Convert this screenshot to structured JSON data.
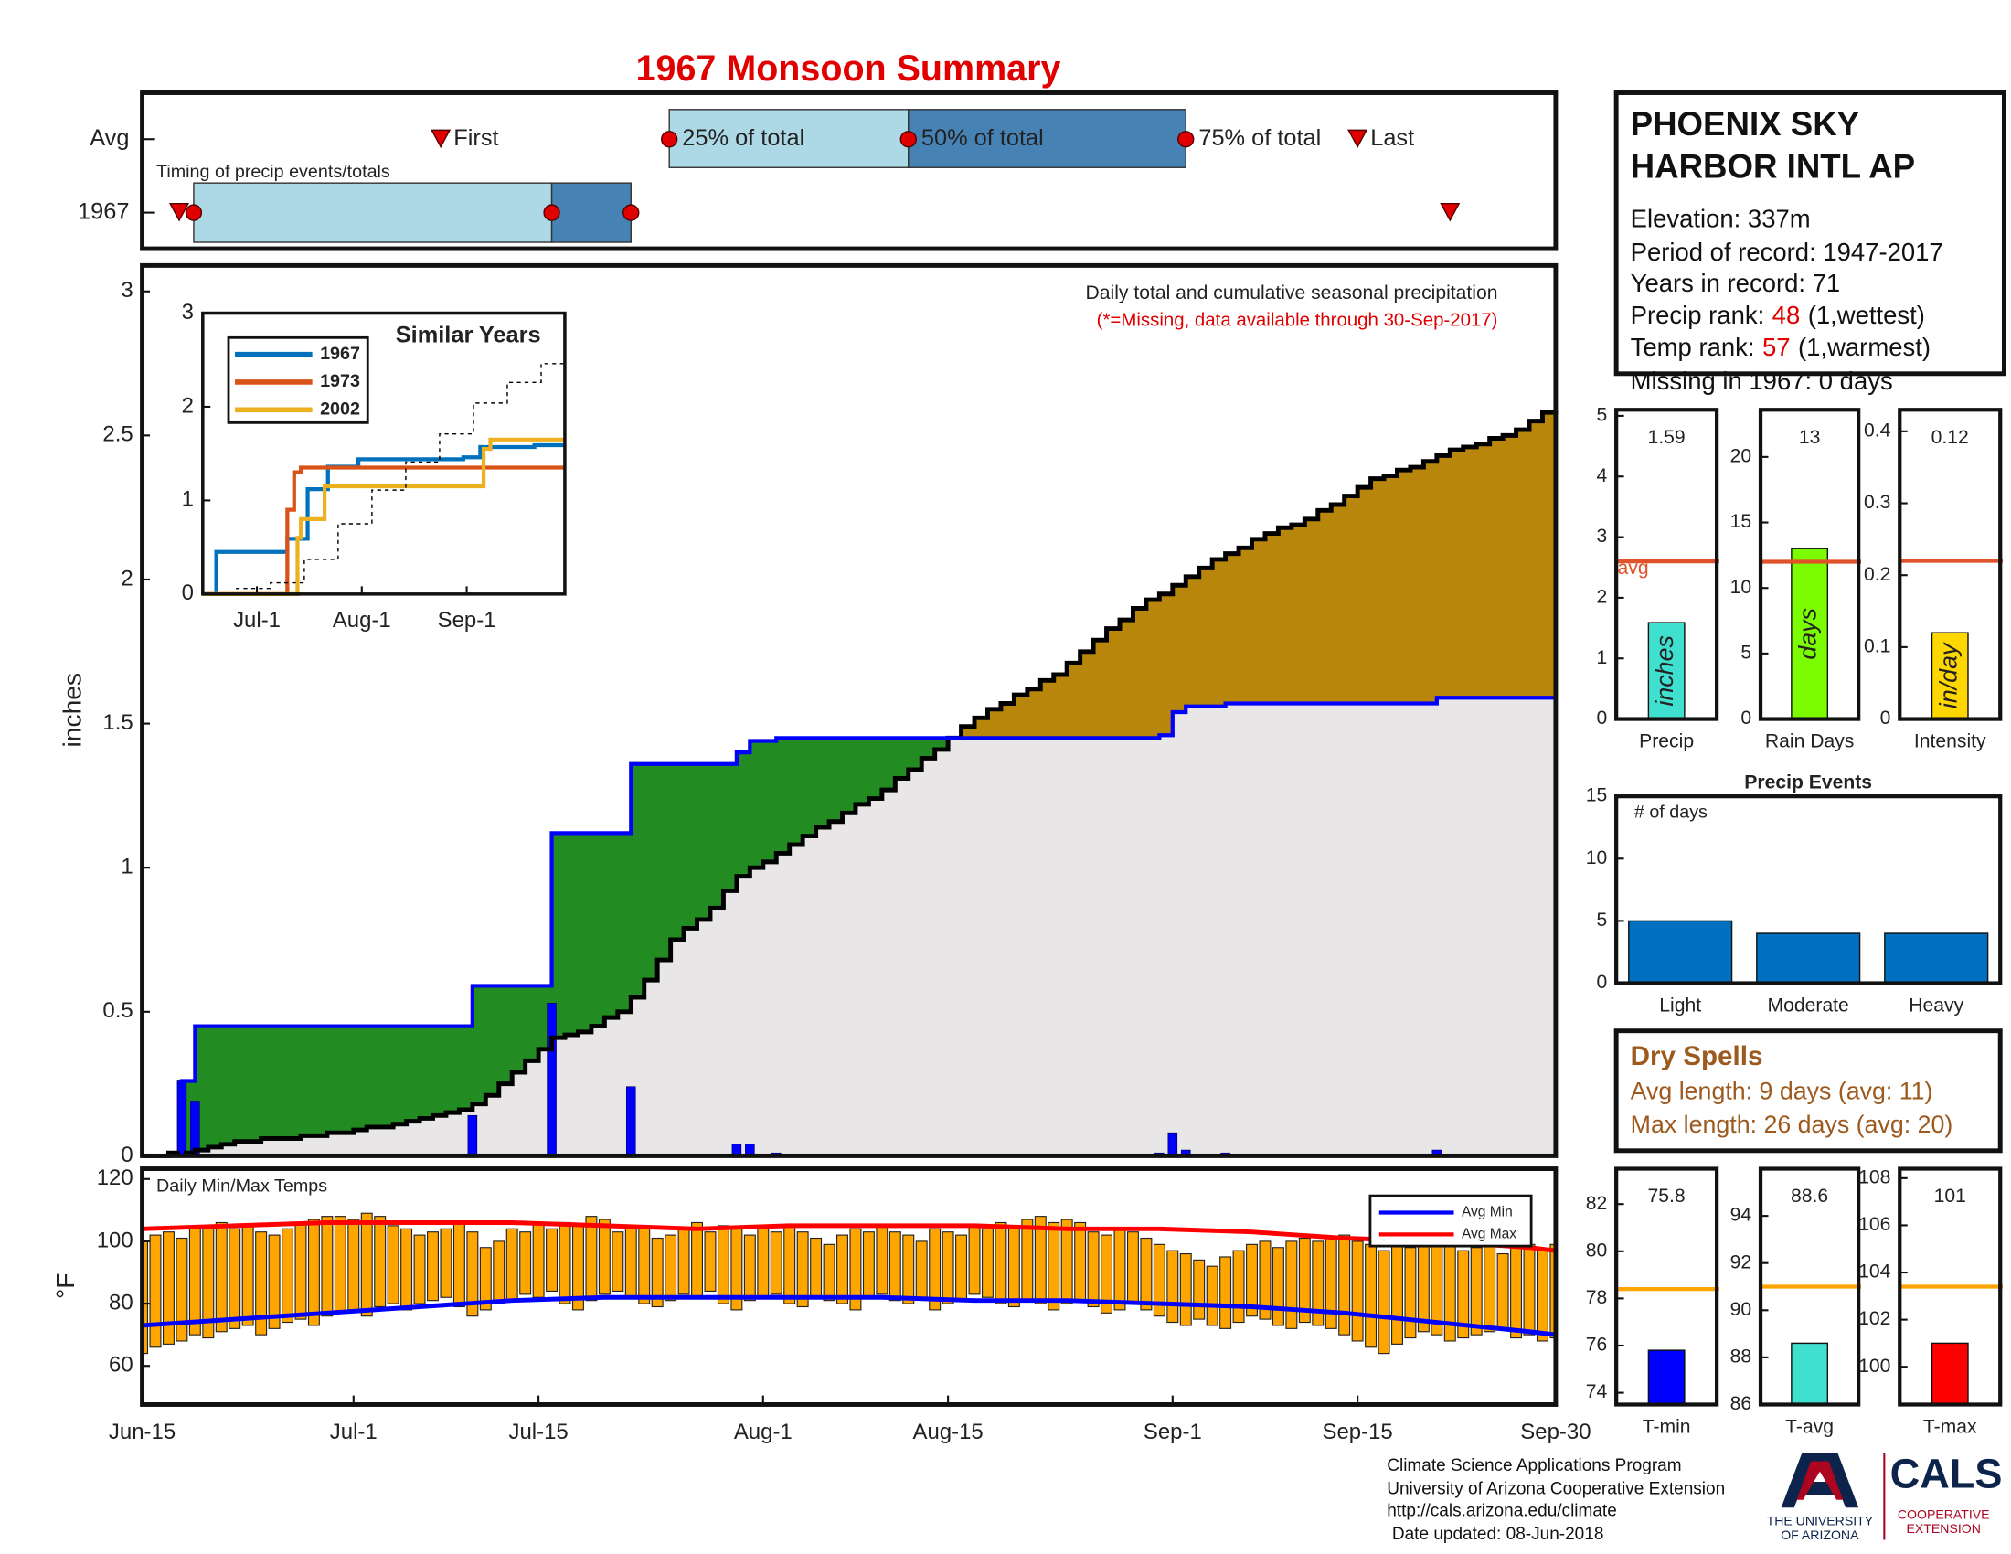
{
  "chart_data": [
    {
      "type": "timing",
      "title": "1967 Monsoon Summary",
      "note": "Timing of precip events/totals",
      "xlim": [
        0,
        107
      ],
      "markers": [
        "First",
        "25% of total",
        "50% of total",
        "75% of total",
        "Last"
      ],
      "colors": {
        "marker": "#e00000",
        "low": "#add8e6",
        "high": "#4682b4"
      },
      "series": [
        {
          "name": "Avg",
          "values": [
            22.6,
            39.9,
            58,
            79,
            92
          ]
        },
        {
          "name": "1967",
          "values": [
            2.8,
            3.9,
            31,
            37,
            99
          ]
        }
      ]
    },
    {
      "type": "cumulative",
      "ylabel": "inches",
      "annotations": [
        "Daily total and cumulative seasonal precipitation",
        "(*=Missing, data available through 30-Sep-2017)"
      ],
      "xlim": [
        0,
        107
      ],
      "ylim": [
        0,
        3.09
      ],
      "yticks": [
        0,
        0.5,
        1,
        1.5,
        2,
        2.5,
        3
      ],
      "overlap_color": "#e8e6e6",
      "series": [
        {
          "color": "#000000",
          "fill": "#b8860b",
          "x": [
            0,
            1,
            2,
            3,
            4,
            5,
            6,
            7,
            8,
            9,
            10,
            11,
            12,
            13,
            14,
            15,
            16,
            17,
            18,
            19,
            20,
            21,
            22,
            23,
            24,
            25,
            26,
            27,
            28,
            29,
            30,
            31,
            32,
            33,
            34,
            35,
            36,
            37,
            38,
            39,
            40,
            41,
            42,
            43,
            44,
            45,
            46,
            47,
            48,
            49,
            50,
            51,
            52,
            53,
            54,
            55,
            56,
            57,
            58,
            59,
            60,
            61,
            62,
            63,
            64,
            65,
            66,
            67,
            68,
            69,
            70,
            71,
            72,
            73,
            74,
            75,
            76,
            77,
            78,
            79,
            80,
            81,
            82,
            83,
            84,
            85,
            86,
            87,
            88,
            89,
            90,
            91,
            92,
            93,
            94,
            95,
            96,
            97,
            98,
            99,
            100,
            101,
            102,
            103,
            104,
            105,
            106,
            107
          ],
          "values": [
            0,
            0,
            0.01,
            0.01,
            0.02,
            0.03,
            0.04,
            0.05,
            0.05,
            0.06,
            0.06,
            0.06,
            0.07,
            0.07,
            0.08,
            0.08,
            0.09,
            0.1,
            0.1,
            0.11,
            0.12,
            0.13,
            0.14,
            0.15,
            0.16,
            0.18,
            0.21,
            0.25,
            0.29,
            0.33,
            0.37,
            0.41,
            0.42,
            0.43,
            0.45,
            0.48,
            0.5,
            0.55,
            0.61,
            0.68,
            0.75,
            0.79,
            0.82,
            0.86,
            0.92,
            0.97,
            1,
            1.02,
            1.05,
            1.08,
            1.11,
            1.14,
            1.16,
            1.19,
            1.22,
            1.24,
            1.27,
            1.31,
            1.34,
            1.38,
            1.41,
            1.45,
            1.49,
            1.52,
            1.55,
            1.57,
            1.6,
            1.62,
            1.65,
            1.67,
            1.71,
            1.75,
            1.79,
            1.83,
            1.86,
            1.9,
            1.93,
            1.95,
            1.98,
            2.01,
            2.04,
            2.07,
            2.09,
            2.11,
            2.14,
            2.16,
            2.18,
            2.19,
            2.21,
            2.24,
            2.26,
            2.29,
            2.32,
            2.35,
            2.36,
            2.38,
            2.39,
            2.41,
            2.43,
            2.45,
            2.46,
            2.47,
            2.49,
            2.5,
            2.52,
            2.55,
            2.58,
            2.59
          ]
        },
        {
          "color": "#0000ff",
          "fill": "#228b22",
          "x": [
            0,
            3,
            4,
            25,
            31,
            37,
            45,
            46,
            48,
            77,
            78,
            79,
            82,
            98,
            107
          ],
          "values": [
            0,
            0.26,
            0.45,
            0.59,
            1.12,
            1.36,
            1.4,
            1.44,
            1.45,
            1.46,
            1.54,
            1.56,
            1.57,
            1.59,
            1.59
          ]
        }
      ],
      "daily": {
        "color": "#0000ff",
        "x": [
          3,
          4,
          25,
          31,
          37,
          45,
          46,
          48,
          77,
          78,
          79,
          82,
          98
        ],
        "values": [
          0.26,
          0.19,
          0.14,
          0.53,
          0.24,
          0.04,
          0.04,
          0.01,
          0.01,
          0.08,
          0.02,
          0.01,
          0.02
        ]
      }
    },
    {
      "type": "inset",
      "title": "Similar Years",
      "xlim": [
        0,
        107
      ],
      "ylim": [
        0,
        3
      ],
      "xticks": [
        {
          "value": 16,
          "label": "Jul-1"
        },
        {
          "value": 47,
          "label": "Aug-1"
        },
        {
          "value": 78,
          "label": "Sep-1"
        }
      ],
      "yticks": [
        0,
        1,
        2,
        3
      ],
      "series": [
        {
          "name": "1967",
          "color": "#0072bd",
          "x": [
            0,
            4,
            25,
            31,
            37,
            46,
            77,
            82,
            98,
            107
          ],
          "values": [
            0,
            0.45,
            0.59,
            1.12,
            1.36,
            1.44,
            1.46,
            1.57,
            1.59,
            1.59
          ]
        },
        {
          "name": "1973",
          "color": "#d95319",
          "x": [
            0,
            25,
            27,
            29,
            107
          ],
          "values": [
            0,
            0.9,
            1.3,
            1.35,
            1.35
          ]
        },
        {
          "name": "2002",
          "color": "#edb120",
          "x": [
            0,
            28,
            29,
            36,
            82,
            83,
            85,
            107
          ],
          "values": [
            0,
            0.6,
            0.8,
            1.15,
            1.15,
            1.55,
            1.65,
            1.65
          ]
        },
        {
          "color": "#000000",
          "dash": true,
          "x": [
            0,
            10,
            20,
            30,
            40,
            50,
            60,
            70,
            80,
            90,
            100,
            107
          ],
          "values": [
            0,
            0.06,
            0.12,
            0.37,
            0.75,
            1.11,
            1.41,
            1.71,
            2.04,
            2.26,
            2.46,
            2.59
          ]
        }
      ]
    },
    {
      "type": "range-bar",
      "title": "Daily Min/Max Temps",
      "ylabel": "°F",
      "xlim": [
        0,
        107
      ],
      "ylim": [
        47.6,
        123.3
      ],
      "yticks": [
        60,
        80,
        100,
        120
      ],
      "xticks": [
        {
          "value": 0,
          "label": "Jun-15"
        },
        {
          "value": 16,
          "label": "Jul-1"
        },
        {
          "value": 30,
          "label": "Jul-15"
        },
        {
          "value": 47,
          "label": "Aug-1"
        },
        {
          "value": 61,
          "label": "Aug-15"
        },
        {
          "value": 78,
          "label": "Sep-1"
        },
        {
          "value": 92,
          "label": "Sep-15"
        },
        {
          "value": 107,
          "label": "Sep-30"
        }
      ],
      "bar_color": "#ffa500",
      "x": [
        0,
        1,
        2,
        3,
        4,
        5,
        6,
        7,
        8,
        9,
        10,
        11,
        12,
        13,
        14,
        15,
        16,
        17,
        18,
        19,
        20,
        21,
        22,
        23,
        24,
        25,
        26,
        27,
        28,
        29,
        30,
        31,
        32,
        33,
        34,
        35,
        36,
        37,
        38,
        39,
        40,
        41,
        42,
        43,
        44,
        45,
        46,
        47,
        48,
        49,
        50,
        51,
        52,
        53,
        54,
        55,
        56,
        57,
        58,
        59,
        60,
        61,
        62,
        63,
        64,
        65,
        66,
        67,
        68,
        69,
        70,
        71,
        72,
        73,
        74,
        75,
        76,
        77,
        78,
        79,
        80,
        81,
        82,
        83,
        84,
        85,
        86,
        87,
        88,
        89,
        90,
        91,
        92,
        93,
        94,
        95,
        96,
        97,
        98,
        99,
        100,
        101,
        102,
        103,
        104,
        105,
        106,
        107
      ],
      "low": [
        64,
        66,
        67,
        68,
        70,
        69,
        71,
        72,
        73,
        70,
        72,
        74,
        75,
        73,
        76,
        77,
        78,
        76,
        79,
        80,
        78,
        80,
        81,
        82,
        79,
        76,
        78,
        80,
        81,
        83,
        82,
        84,
        80,
        78,
        81,
        83,
        84,
        82,
        80,
        79,
        81,
        83,
        82,
        84,
        80,
        78,
        81,
        82,
        83,
        80,
        79,
        82,
        81,
        80,
        78,
        82,
        83,
        81,
        80,
        82,
        78,
        80,
        81,
        83,
        82,
        80,
        79,
        81,
        80,
        78,
        80,
        81,
        79,
        77,
        78,
        80,
        78,
        76,
        74,
        73,
        75,
        73,
        72,
        74,
        76,
        75,
        73,
        72,
        74,
        73,
        72,
        70,
        68,
        66,
        64,
        67,
        69,
        71,
        70,
        68,
        69,
        70,
        71,
        72,
        69,
        70,
        68,
        69
      ],
      "high": [
        100,
        102,
        103,
        101,
        104,
        105,
        106,
        104,
        105,
        103,
        102,
        104,
        106,
        107,
        108,
        108,
        107,
        109,
        108,
        105,
        104,
        102,
        103,
        104,
        106,
        103,
        98,
        100,
        104,
        103,
        106,
        104,
        106,
        105,
        108,
        107,
        103,
        104,
        105,
        101,
        102,
        104,
        106,
        103,
        105,
        104,
        102,
        104,
        103,
        105,
        103,
        101,
        99,
        102,
        104,
        103,
        105,
        103,
        102,
        100,
        104,
        103,
        102,
        105,
        104,
        106,
        104,
        107,
        108,
        106,
        107,
        106,
        103,
        102,
        104,
        103,
        101,
        99,
        97,
        96,
        94,
        92,
        95,
        97,
        99,
        100,
        98,
        100,
        101,
        100,
        101,
        102,
        100,
        99,
        97,
        100,
        98,
        101,
        100,
        99,
        97,
        98,
        99,
        96,
        98,
        99,
        97,
        99
      ],
      "series": [
        {
          "name": "Avg Min",
          "color": "#0000ff",
          "x": [
            0,
            7,
            14,
            21,
            28,
            35,
            42,
            49,
            56,
            63,
            70,
            77,
            84,
            91,
            98,
            105,
            107
          ],
          "values": [
            73,
            75,
            77,
            79,
            81,
            82,
            82,
            82,
            82,
            81,
            81,
            80,
            79,
            77,
            74,
            71,
            70
          ]
        },
        {
          "name": "Avg Max",
          "color": "#ff0000",
          "x": [
            0,
            7,
            14,
            21,
            28,
            35,
            42,
            49,
            56,
            63,
            70,
            77,
            84,
            91,
            98,
            105,
            107
          ],
          "values": [
            104,
            105,
            106,
            106,
            106,
            105,
            104,
            105,
            105,
            105,
            104,
            104,
            103,
            101,
            100,
            98,
            97
          ]
        }
      ]
    },
    {
      "type": "single-bar",
      "xlabel": "Precip",
      "bar_label": "inches",
      "avg_label": "avg",
      "value": 1.59,
      "avg": 2.6,
      "color": "#40e0d0",
      "avg_color": "#e0522a",
      "ylim": [
        0,
        5.1
      ],
      "yticks": [
        0,
        1,
        2,
        3,
        4,
        5
      ]
    },
    {
      "type": "single-bar",
      "xlabel": "Rain Days",
      "bar_label": "days",
      "value": 13,
      "avg": 12,
      "color": "#7cfc00",
      "avg_color": "#e0522a",
      "ylim": [
        0,
        23.6
      ],
      "yticks": [
        0,
        5,
        10,
        15,
        20
      ]
    },
    {
      "type": "single-bar",
      "xlabel": "Intensity",
      "bar_label": "in/day",
      "value": 0.12,
      "avg": 0.22,
      "color": "#ffd700",
      "avg_color": "#e0522a",
      "ylim": [
        0,
        0.43
      ],
      "yticks": [
        0,
        0.1,
        0.2,
        0.3,
        0.4
      ]
    },
    {
      "type": "bar",
      "title": "Precip Events",
      "annotation": "# of days",
      "categories": [
        "Light",
        "Moderate",
        "Heavy"
      ],
      "values": [
        5,
        4,
        4
      ],
      "color": "#0070c0",
      "ylim": [
        0,
        15
      ],
      "yticks": [
        0,
        5,
        10,
        15
      ]
    },
    {
      "type": "single-bar",
      "xlabel": "T-min",
      "value": 75.8,
      "avg": 78.4,
      "color": "#0000ff",
      "avg_color": "#ffa500",
      "ylim": [
        73.5,
        83.5
      ],
      "yticks": [
        74,
        76,
        78,
        80,
        82
      ]
    },
    {
      "type": "single-bar",
      "xlabel": "T-avg",
      "value": 88.6,
      "avg": 91,
      "color": "#40e0d0",
      "avg_color": "#ffa500",
      "ylim": [
        86,
        96
      ],
      "yticks": [
        86,
        88,
        90,
        92,
        94
      ]
    },
    {
      "type": "single-bar",
      "xlabel": "T-max",
      "value": 101,
      "avg": 103.4,
      "color": "#ff0000",
      "avg_color": "#ffa500",
      "ylim": [
        98.4,
        108.4
      ],
      "yticks": [
        100,
        102,
        104,
        106,
        108
      ]
    }
  ],
  "station": {
    "title": [
      "PHOENIX SKY",
      "HARBOR INTL AP"
    ],
    "lines": [
      "Elevation: 337m",
      "Period of record: 1947-2017",
      "Years in record: 71"
    ],
    "precip_rank": [
      "Precip rank:",
      "48",
      "(1,wettest)"
    ],
    "temp_rank": [
      "Temp rank:",
      "57",
      "(1,warmest)"
    ],
    "missing": "Missing in 1967: 0 days"
  },
  "dry_spells": {
    "title": "Dry Spells",
    "lines": [
      "Avg length: 9 days (avg: 11)",
      "Max length: 26 days (avg: 20)"
    ]
  },
  "credits": [
    "Climate Science Applications Program",
    "University of Arizona Cooperative Extension",
    "http://cals.arizona.edu/climate",
    "Date updated: 08-Jun-2018"
  ],
  "logos": {
    "ua": [
      "THE UNIVERSITY",
      "OF ARIZONA"
    ],
    "cals": "CALS",
    "cals_sub": [
      "COOPERATIVE",
      "EXTENSION"
    ]
  }
}
